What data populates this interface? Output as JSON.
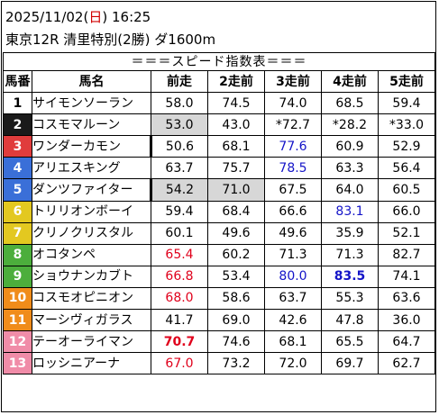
{
  "header": {
    "date": "2025/11/02",
    "dow_open": "(",
    "dow": "日",
    "dow_close": ")",
    "time": "16:25",
    "race": "東京12R 清里特別(2勝) ダ1600m"
  },
  "table_title": "＝＝＝スピード指数表＝＝＝",
  "columns": [
    "馬番",
    "馬名",
    "前走",
    "2走前",
    "3走前",
    "4走前",
    "5走前"
  ],
  "rows": [
    {
      "no": "1",
      "name": "サイモンソーラン",
      "bg": "#ffffff",
      "fg": "#000000",
      "vals": [
        "58.0",
        "74.5",
        "74.0",
        "68.5",
        "59.4"
      ]
    },
    {
      "no": "2",
      "name": "コスモマルーン",
      "bg": "#1a1a1a",
      "fg": "#ffffff",
      "vals": [
        "53.0",
        "43.0",
        "*72.7",
        "*28.2",
        "*33.0"
      ]
    },
    {
      "no": "3",
      "name": "ワンダーカモン",
      "bg": "#e03c3c",
      "fg": "#ffffff",
      "vals": [
        "50.6",
        "68.1",
        "77.6",
        "60.9",
        "52.9"
      ]
    },
    {
      "no": "4",
      "name": "アリエスキング",
      "bg": "#3a6fd8",
      "fg": "#ffffff",
      "vals": [
        "63.7",
        "75.7",
        "78.5",
        "63.3",
        "56.4"
      ]
    },
    {
      "no": "5",
      "name": "ダンツファイター",
      "bg": "#3a6fd8",
      "fg": "#ffffff",
      "vals": [
        "54.2",
        "71.0",
        "67.5",
        "64.0",
        "60.5"
      ]
    },
    {
      "no": "6",
      "name": "トリリオンボーイ",
      "bg": "#e3c820",
      "fg": "#ffffff",
      "vals": [
        "59.4",
        "68.4",
        "66.6",
        "83.1",
        "66.0"
      ]
    },
    {
      "no": "7",
      "name": "クリノクリスタル",
      "bg": "#e3c820",
      "fg": "#ffffff",
      "vals": [
        "60.1",
        "49.6",
        "49.6",
        "35.9",
        "52.1"
      ]
    },
    {
      "no": "8",
      "name": "オコタンペ",
      "bg": "#4cae3c",
      "fg": "#ffffff",
      "vals": [
        "65.4",
        "60.2",
        "71.3",
        "71.3",
        "82.7"
      ]
    },
    {
      "no": "9",
      "name": "ショウナンカブト",
      "bg": "#4cae3c",
      "fg": "#ffffff",
      "vals": [
        "66.8",
        "53.4",
        "80.0",
        "83.5",
        "74.1"
      ]
    },
    {
      "no": "10",
      "name": "コスモオピニオン",
      "bg": "#f08c1a",
      "fg": "#ffffff",
      "vals": [
        "68.0",
        "58.6",
        "63.7",
        "55.3",
        "63.6"
      ]
    },
    {
      "no": "11",
      "name": "マーシヴィガラス",
      "bg": "#f08c1a",
      "fg": "#ffffff",
      "vals": [
        "41.7",
        "69.0",
        "42.6",
        "47.8",
        "36.0"
      ]
    },
    {
      "no": "12",
      "name": "テーオーライマン",
      "bg": "#f08ca8",
      "fg": "#ffffff",
      "vals": [
        "70.7",
        "74.6",
        "68.1",
        "65.5",
        "64.7"
      ]
    },
    {
      "no": "13",
      "name": "ロッシニアーナ",
      "bg": "#f08ca8",
      "fg": "#ffffff",
      "vals": [
        "67.0",
        "73.2",
        "72.0",
        "69.7",
        "62.7"
      ]
    }
  ],
  "styles": {
    "gray": [
      "1-0",
      "4-0",
      "4-1"
    ],
    "red": [
      "7-0",
      "8-0",
      "9-0",
      "11-0",
      "12-0"
    ],
    "blue": [
      "2-2",
      "3-2",
      "5-3",
      "8-2",
      "8-3"
    ],
    "bold": [
      "8-3",
      "11-0"
    ],
    "leftbar": [
      "2",
      "4"
    ]
  }
}
